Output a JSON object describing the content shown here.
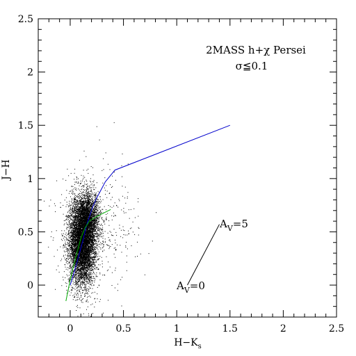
{
  "chart_data": {
    "type": "scatter",
    "title": "",
    "annotations": {
      "line1": "2MASS h+χ Persei",
      "line2": "σ≦0.1",
      "av5_base": "A",
      "av5_sub": "V",
      "av5_rest": "=5",
      "av0_base": "A",
      "av0_sub": "V",
      "av0_rest": "=0"
    },
    "xlabel": {
      "base": "H−K",
      "sub": "s"
    },
    "ylabel": "J−H",
    "xlim": [
      -0.3,
      2.5
    ],
    "ylim": [
      -0.3,
      2.5
    ],
    "x_ticks": [
      {
        "value": 0,
        "label": "0"
      },
      {
        "value": 0.5,
        "label": "0.5"
      },
      {
        "value": 1,
        "label": "1"
      },
      {
        "value": 1.5,
        "label": "1.5"
      },
      {
        "value": 2,
        "label": "2"
      },
      {
        "value": 2.5,
        "label": "2.5"
      }
    ],
    "y_ticks": [
      {
        "value": 0,
        "label": "0"
      },
      {
        "value": 0.5,
        "label": "0.5"
      },
      {
        "value": 1,
        "label": "1"
      },
      {
        "value": 1.5,
        "label": "1.5"
      },
      {
        "value": 2,
        "label": "2"
      },
      {
        "value": 2.5,
        "label": "2.5"
      }
    ],
    "series": [
      {
        "color": "#0000cc",
        "style": "line",
        "points": [
          [
            0.0,
            0.0
          ],
          [
            0.06,
            0.2
          ],
          [
            0.12,
            0.42
          ],
          [
            0.15,
            0.55
          ],
          [
            0.18,
            0.64
          ],
          [
            0.21,
            0.73
          ],
          [
            0.25,
            0.82
          ],
          [
            0.33,
            0.97
          ],
          [
            0.42,
            1.08
          ],
          [
            1.5,
            1.5
          ]
        ]
      },
      {
        "color": "#00aa00",
        "style": "line",
        "points": [
          [
            -0.04,
            -0.15
          ],
          [
            -0.02,
            -0.05
          ],
          [
            0.0,
            0.05
          ],
          [
            0.03,
            0.18
          ],
          [
            0.07,
            0.33
          ],
          [
            0.1,
            0.44
          ],
          [
            0.14,
            0.54
          ],
          [
            0.18,
            0.6
          ],
          [
            0.24,
            0.64
          ],
          [
            0.3,
            0.67
          ],
          [
            0.38,
            0.71
          ]
        ]
      },
      {
        "color": "#000000",
        "style": "line",
        "points": [
          [
            1.1,
            0.0
          ],
          [
            1.4,
            0.57
          ]
        ]
      }
    ],
    "scatter_cloud": {
      "color": "#000000",
      "clusters": [
        {
          "center": [
            0.11,
            0.42
          ],
          "spread": [
            0.06,
            0.2
          ],
          "weight": 0.8
        },
        {
          "center": [
            0.18,
            0.62
          ],
          "spread": [
            0.05,
            0.12
          ],
          "weight": 0.15
        },
        {
          "center": [
            0.25,
            0.55
          ],
          "spread": [
            0.2,
            0.3
          ],
          "weight": 0.05
        }
      ]
    }
  }
}
